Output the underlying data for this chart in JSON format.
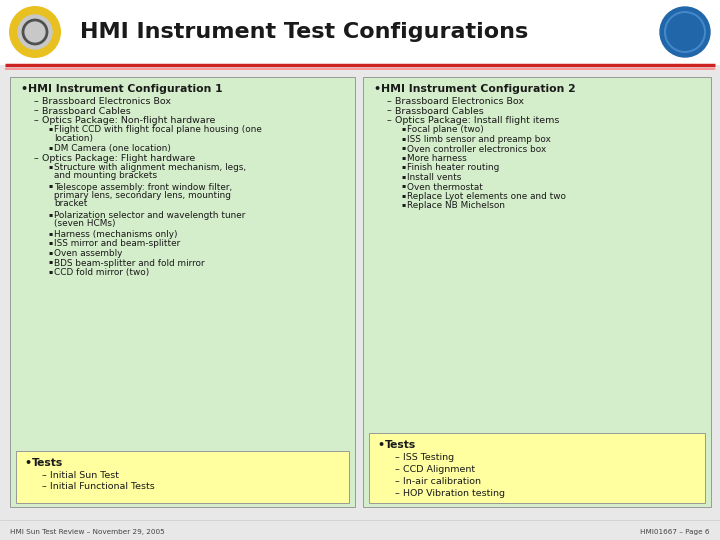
{
  "title": "HMI Instrument Test Configurations",
  "footer_left": "HMI Sun Test Review – November 29, 2005",
  "footer_right": "HMI01667 – Page 6",
  "bg_color": "#e8e8e8",
  "header_bg": "#ffffff",
  "divider_color1": "#cc0000",
  "divider_color2": "#ff9999",
  "col1_bg": "#d4edca",
  "col2_bg": "#d4edca",
  "tests_bg": "#ffffa0",
  "col1_header": "HMI Instrument Configuration 1",
  "col2_header": "HMI Instrument Configuration 2",
  "col1_items": [
    {
      "level": 1,
      "text": "Brassboard Electronics Box"
    },
    {
      "level": 1,
      "text": "Brassboard Cables"
    },
    {
      "level": 1,
      "text": "Optics Package: Non-flight hardware"
    },
    {
      "level": 2,
      "text": "Flight CCD with flight focal plane housing (one\nlocation)"
    },
    {
      "level": 2,
      "text": "DM Camera (one location)"
    },
    {
      "level": 1,
      "text": "Optics Package: Flight hardware"
    },
    {
      "level": 2,
      "text": "Structure with alignment mechanism, legs,\nand mounting brackets"
    },
    {
      "level": 2,
      "text": "Telescope assembly: front window filter,\nprimary lens, secondary lens, mounting\nbracket"
    },
    {
      "level": 2,
      "text": "Polarization selector and wavelength tuner\n(seven HCMs)"
    },
    {
      "level": 2,
      "text": "Harness (mechanisms only)"
    },
    {
      "level": 2,
      "text": "ISS mirror and beam-splitter"
    },
    {
      "level": 2,
      "text": "Oven assembly"
    },
    {
      "level": 2,
      "text": "BDS beam-splitter and fold mirror"
    },
    {
      "level": 2,
      "text": "CCD fold mirror (two)"
    }
  ],
  "col1_tests": {
    "header": "Tests",
    "items": [
      "Initial Sun Test",
      "Initial Functional Tests"
    ]
  },
  "col2_items": [
    {
      "level": 1,
      "text": "Brassboard Electronics Box"
    },
    {
      "level": 1,
      "text": "Brassboard Cables"
    },
    {
      "level": 1,
      "text": "Optics Package: Install flight items"
    },
    {
      "level": 2,
      "text": "Focal plane (two)"
    },
    {
      "level": 2,
      "text": "ISS limb sensor and preamp box"
    },
    {
      "level": 2,
      "text": "Oven controller electronics box"
    },
    {
      "level": 2,
      "text": "More harness"
    },
    {
      "level": 2,
      "text": "Finish heater routing"
    },
    {
      "level": 2,
      "text": "Install vents"
    },
    {
      "level": 2,
      "text": "Oven thermostat"
    },
    {
      "level": 2,
      "text": "Replace Lyot elements one and two"
    },
    {
      "level": 2,
      "text": "Replace NB Michelson"
    }
  ],
  "col2_tests": {
    "header": "Tests",
    "items": [
      "ISS Testing",
      "CCD Alignment",
      "In-air calibration",
      "HOP Vibration testing"
    ]
  }
}
